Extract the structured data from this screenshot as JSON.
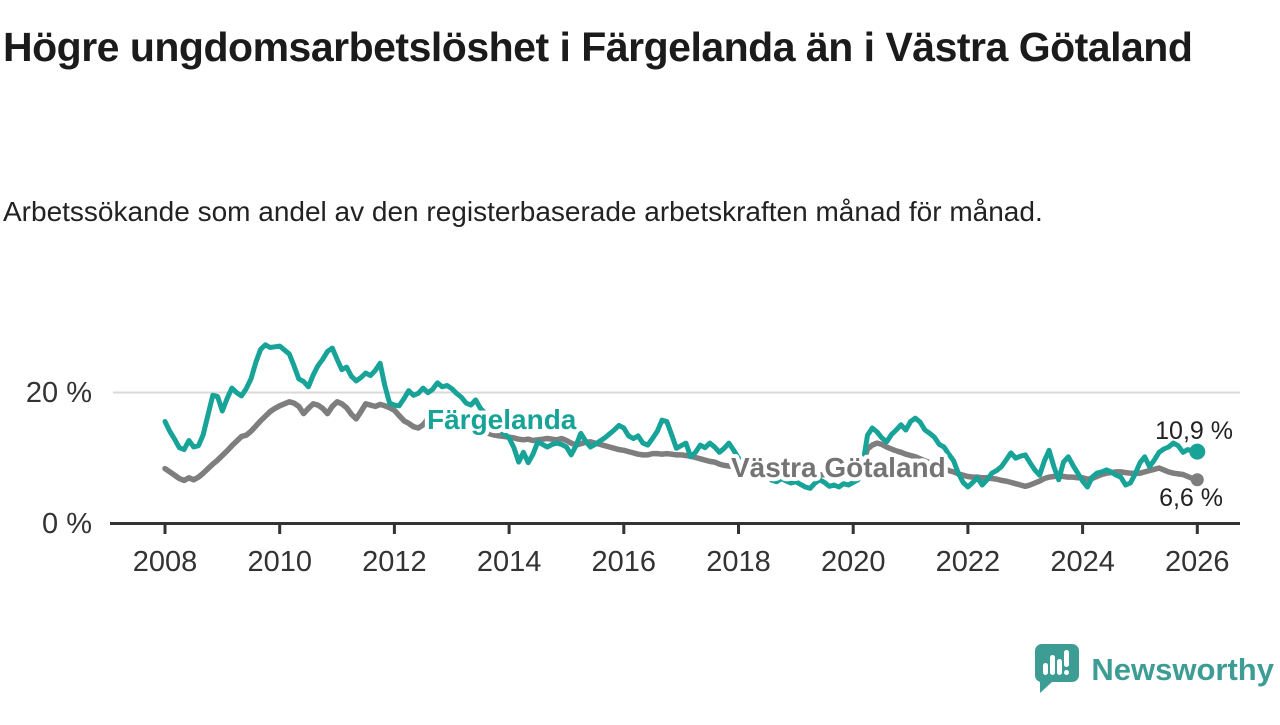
{
  "header": {
    "title": "Högre ungdomsarbetslöshet i Färgelanda än i Västra Götaland",
    "subtitle": "Arbetssökande som andel av den registerbaserade arbetskraften månad för månad."
  },
  "footer": {
    "brand": "Newsworthy",
    "brand_color": "#3d9d94"
  },
  "colors": {
    "accent_teal": "#17a398",
    "series_gray": "#7e7e7e",
    "label_gray": "#747474",
    "axis": "#333333",
    "gridline": "#d9d9d9",
    "value_text": "#222222"
  },
  "chart_data": {
    "type": "line",
    "title": "Högre ungdomsarbetslöshet i Färgelanda än i Västra Götaland",
    "subtitle": "Arbetssökande som andel av den registerbaserade arbetskraften månad för månad.",
    "unit": "%",
    "x_start_year": 2008,
    "x_months_per_point": 1,
    "xlim": [
      2008.0,
      2026.3
    ],
    "ylim": [
      0,
      28
    ],
    "grid": "horizontal line at 20 % only",
    "legend_position": "inline labels on lines",
    "x_ticks": [
      {
        "year": 2008,
        "label": "2008"
      },
      {
        "year": 2010,
        "label": "2010"
      },
      {
        "year": 2012,
        "label": "2012"
      },
      {
        "year": 2014,
        "label": "2014"
      },
      {
        "year": 2016,
        "label": "2016"
      },
      {
        "year": 2018,
        "label": "2018"
      },
      {
        "year": 2020,
        "label": "2020"
      },
      {
        "year": 2022,
        "label": "2022"
      },
      {
        "year": 2024,
        "label": "2024"
      },
      {
        "year": 2026,
        "label": "2026"
      }
    ],
    "y_ticks": [
      {
        "value": 0,
        "label": "0 %",
        "grid": false
      },
      {
        "value": 20,
        "label": "20 %",
        "grid": true
      }
    ],
    "series": [
      {
        "name": "Färgelanda",
        "color": "#17a398",
        "end_label": "10,9 %",
        "last_value": 10.9,
        "start": "2008-01",
        "monthly_values": [
          15.5,
          14.0,
          12.8,
          11.5,
          11.2,
          12.6,
          11.6,
          11.8,
          13.5,
          16.5,
          19.5,
          19.3,
          17.1,
          19.0,
          20.6,
          19.9,
          19.4,
          20.5,
          22.0,
          24.5,
          26.5,
          27.2,
          26.8,
          26.9,
          27.0,
          26.4,
          25.8,
          24.0,
          22.0,
          21.6,
          20.8,
          22.6,
          24.0,
          25.0,
          26.2,
          26.7,
          25.0,
          23.4,
          23.8,
          22.4,
          21.7,
          22.2,
          22.9,
          22.5,
          23.3,
          24.4,
          21.0,
          18.3,
          18.0,
          17.9,
          19.0,
          20.2,
          19.5,
          19.8,
          20.6,
          19.9,
          20.4,
          21.4,
          20.8,
          21.0,
          20.5,
          19.8,
          19.2,
          18.3,
          18.0,
          18.8,
          17.5,
          16.8,
          16.0,
          15.2,
          14.4,
          13.6,
          13.0,
          11.5,
          9.3,
          10.8,
          9.2,
          10.5,
          12.4,
          12.0,
          11.6,
          12.0,
          12.2,
          12.0,
          11.6,
          10.4,
          11.8,
          13.7,
          12.5,
          11.6,
          12.0,
          12.5,
          13.0,
          13.6,
          14.2,
          14.9,
          14.5,
          13.3,
          12.9,
          13.3,
          12.2,
          11.9,
          12.9,
          14.0,
          15.7,
          15.5,
          13.5,
          11.4,
          11.8,
          12.2,
          10.1,
          10.8,
          11.9,
          11.5,
          12.2,
          11.6,
          10.8,
          11.4,
          12.2,
          11.1,
          9.9,
          9.0,
          8.2,
          7.5,
          7.0,
          7.8,
          7.2,
          6.5,
          6.3,
          6.8,
          6.4,
          6.1,
          6.3,
          5.9,
          5.5,
          5.3,
          6.1,
          6.6,
          6.2,
          5.6,
          5.8,
          5.5,
          6.0,
          5.8,
          6.2,
          6.6,
          8.9,
          13.4,
          14.5,
          13.9,
          13.0,
          12.4,
          13.5,
          14.2,
          15.0,
          14.2,
          15.5,
          16.0,
          15.4,
          14.2,
          13.7,
          13.1,
          12.0,
          11.6,
          10.5,
          9.5,
          7.6,
          6.2,
          5.5,
          6.2,
          6.9,
          5.8,
          6.6,
          7.6,
          8.0,
          8.6,
          9.6,
          10.7,
          9.9,
          10.2,
          10.4,
          9.2,
          8.1,
          7.3,
          9.5,
          11.1,
          8.6,
          6.6,
          9.3,
          10.1,
          8.8,
          7.6,
          6.4,
          5.5,
          7.0,
          7.6,
          7.8,
          8.1,
          7.8,
          7.3,
          7.0,
          5.8,
          6.1,
          7.5,
          9.2,
          10.1,
          8.6,
          9.6,
          10.8,
          11.3,
          11.6,
          12.2,
          11.8,
          10.8,
          11.2,
          11.0,
          10.9
        ]
      },
      {
        "name": "Västra Götaland",
        "color": "#7e7e7e",
        "end_label": "6,6 %",
        "last_value": 6.6,
        "start": "2008-01",
        "monthly_values": [
          8.3,
          7.8,
          7.3,
          6.8,
          6.5,
          6.9,
          6.6,
          7.0,
          7.6,
          8.3,
          9.0,
          9.6,
          10.3,
          11.0,
          11.8,
          12.5,
          13.2,
          13.4,
          14.0,
          14.8,
          15.6,
          16.3,
          17.0,
          17.5,
          17.9,
          18.2,
          18.5,
          18.3,
          17.8,
          16.7,
          17.5,
          18.2,
          18.0,
          17.5,
          16.7,
          17.8,
          18.5,
          18.2,
          17.6,
          16.6,
          15.9,
          17.0,
          18.2,
          18.0,
          17.8,
          18.1,
          17.9,
          17.6,
          17.2,
          16.4,
          15.6,
          15.2,
          14.7,
          14.5,
          15.0,
          15.9,
          16.4,
          16.8,
          16.6,
          16.2,
          16.0,
          15.6,
          15.2,
          14.9,
          14.6,
          14.3,
          14.0,
          13.8,
          13.6,
          13.4,
          13.3,
          13.2,
          13.1,
          13.0,
          12.8,
          12.7,
          12.8,
          12.6,
          12.7,
          12.8,
          12.9,
          12.8,
          12.7,
          12.9,
          12.6,
          12.2,
          11.9,
          12.1,
          12.3,
          12.4,
          12.2,
          12.0,
          11.8,
          11.6,
          11.4,
          11.2,
          11.1,
          10.9,
          10.7,
          10.5,
          10.4,
          10.4,
          10.6,
          10.6,
          10.5,
          10.6,
          10.5,
          10.4,
          10.4,
          10.3,
          10.2,
          10.0,
          9.8,
          9.6,
          9.4,
          9.3,
          9.0,
          8.8,
          8.7,
          8.6,
          8.5,
          8.4,
          8.3,
          8.1,
          8.0,
          8.0,
          7.9,
          7.8,
          7.7,
          7.7,
          7.6,
          7.6,
          7.5,
          7.4,
          7.3,
          7.3,
          7.2,
          7.3,
          7.4,
          7.3,
          7.2,
          7.3,
          7.4,
          7.5,
          7.6,
          7.8,
          9.0,
          11.3,
          11.9,
          12.2,
          12.0,
          11.6,
          11.3,
          11.0,
          10.8,
          10.5,
          10.3,
          10.1,
          9.8,
          9.5,
          9.2,
          8.9,
          8.6,
          8.3,
          8.0,
          7.8,
          7.5,
          7.3,
          7.1,
          7.0,
          7.0,
          6.9,
          6.9,
          6.8,
          6.7,
          6.5,
          6.4,
          6.2,
          6.0,
          5.8,
          5.6,
          5.8,
          6.1,
          6.4,
          6.8,
          7.0,
          7.1,
          7.2,
          7.1,
          7.0,
          7.0,
          6.9,
          6.9,
          6.7,
          6.8,
          7.1,
          7.4,
          7.6,
          7.7,
          7.8,
          7.8,
          7.7,
          7.6,
          7.6,
          7.6,
          7.8,
          8.0,
          8.2,
          8.4,
          8.1,
          7.8,
          7.6,
          7.5,
          7.4,
          7.1,
          6.8,
          6.6
        ]
      }
    ]
  }
}
